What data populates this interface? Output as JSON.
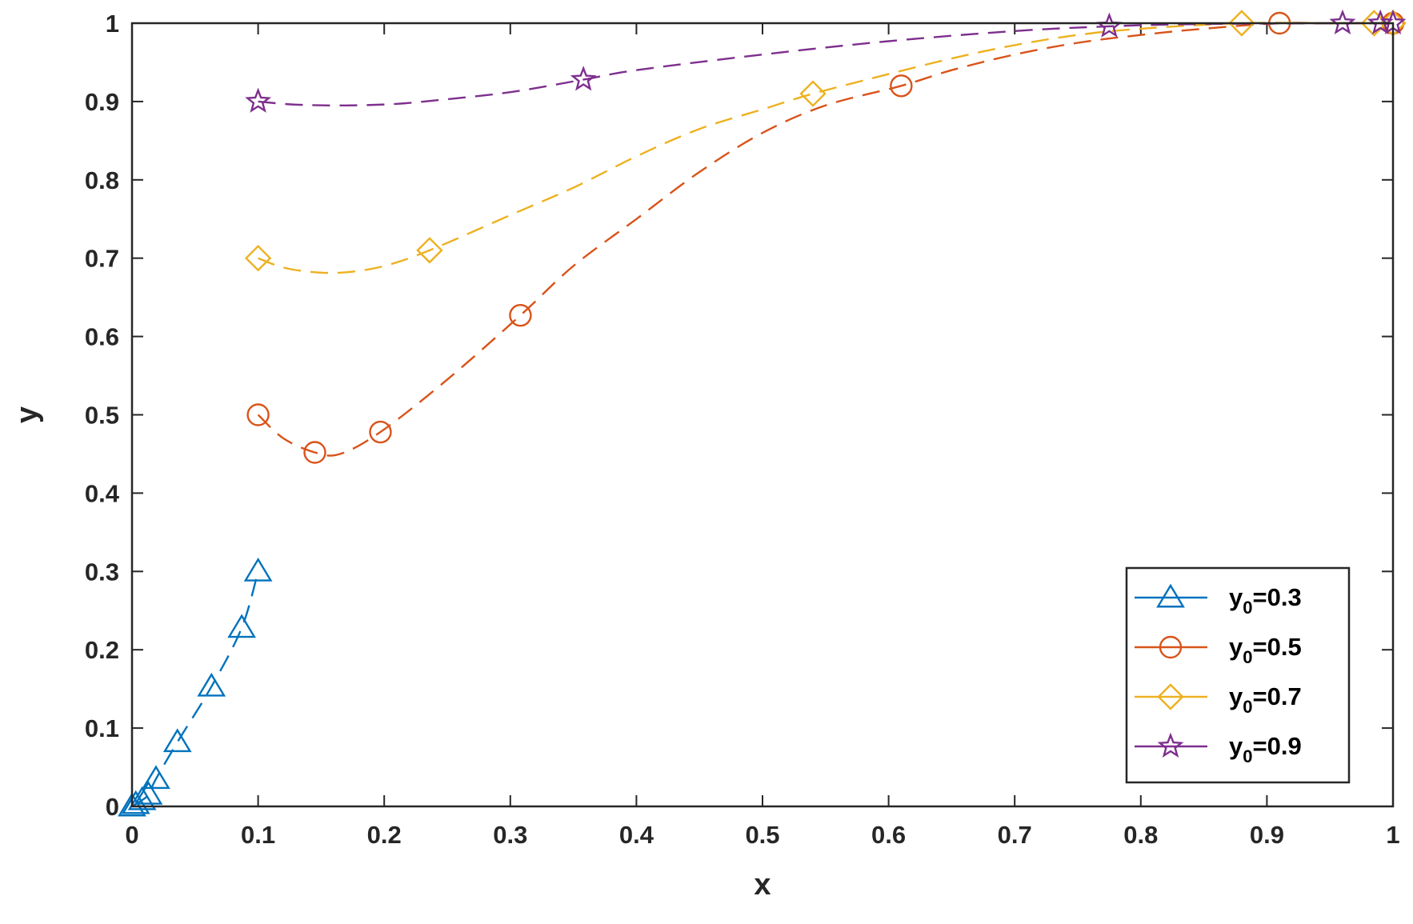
{
  "chart_data": {
    "type": "line",
    "title": "",
    "xlabel": "x",
    "ylabel": "y",
    "xlim": [
      0,
      1
    ],
    "ylim": [
      0,
      1
    ],
    "xticks": [
      0,
      0.1,
      0.2,
      0.3,
      0.4,
      0.5,
      0.6,
      0.7,
      0.8,
      0.9,
      1
    ],
    "xtick_labels": [
      "0",
      "0.1",
      "0.2",
      "0.3",
      "0.4",
      "0.5",
      "0.6",
      "0.7",
      "0.8",
      "0.9",
      "1"
    ],
    "yticks": [
      0,
      0.1,
      0.2,
      0.3,
      0.4,
      0.5,
      0.6,
      0.7,
      0.8,
      0.9,
      1
    ],
    "ytick_labels": [
      "0",
      "0.1",
      "0.2",
      "0.3",
      "0.4",
      "0.5",
      "0.6",
      "0.7",
      "0.8",
      "0.9",
      "1"
    ],
    "grid": false,
    "legend_position": "bottom-right",
    "series": [
      {
        "name": "y0=0.3",
        "legend_base": "y",
        "legend_sub": "0",
        "legend_rest": "=0.3",
        "color": "#0072BD",
        "marker": "triangle",
        "line_style": "dashed",
        "curve": [
          [
            0,
            0
          ],
          [
            0.003,
            0.003
          ],
          [
            0.008,
            0.008
          ],
          [
            0.013,
            0.015
          ],
          [
            0.019,
            0.035
          ],
          [
            0.036,
            0.082
          ],
          [
            0.063,
            0.153
          ],
          [
            0.087,
            0.228
          ],
          [
            0.1,
            0.3
          ]
        ],
        "markers": [
          [
            0,
            0
          ],
          [
            0.003,
            0.003
          ],
          [
            0.008,
            0.008
          ],
          [
            0.013,
            0.015
          ],
          [
            0.019,
            0.035
          ],
          [
            0.036,
            0.082
          ],
          [
            0.063,
            0.153
          ],
          [
            0.087,
            0.228
          ],
          [
            0.1,
            0.3
          ]
        ]
      },
      {
        "name": "y0=0.5",
        "legend_base": "y",
        "legend_sub": "0",
        "legend_rest": "=0.5",
        "color": "#D95319",
        "marker": "circle",
        "line_style": "dashed",
        "curve": [
          [
            0.1,
            0.5
          ],
          [
            0.12,
            0.47
          ],
          [
            0.145,
            0.452
          ],
          [
            0.165,
            0.45
          ],
          [
            0.197,
            0.478
          ],
          [
            0.25,
            0.545
          ],
          [
            0.308,
            0.627
          ],
          [
            0.35,
            0.69
          ],
          [
            0.4,
            0.75
          ],
          [
            0.45,
            0.81
          ],
          [
            0.5,
            0.86
          ],
          [
            0.55,
            0.895
          ],
          [
            0.61,
            0.92
          ],
          [
            0.65,
            0.94
          ],
          [
            0.7,
            0.96
          ],
          [
            0.75,
            0.975
          ],
          [
            0.8,
            0.985
          ],
          [
            0.85,
            0.993
          ],
          [
            0.91,
            1.0
          ],
          [
            0.95,
            1.0
          ],
          [
            1.0,
            1.0
          ]
        ],
        "markers": [
          [
            0.1,
            0.5
          ],
          [
            0.145,
            0.452
          ],
          [
            0.197,
            0.478
          ],
          [
            0.308,
            0.627
          ],
          [
            0.61,
            0.92
          ],
          [
            0.91,
            1.0
          ],
          [
            1.0,
            1.0
          ]
        ]
      },
      {
        "name": "y0=0.7",
        "legend_base": "y",
        "legend_sub": "0",
        "legend_rest": "=0.7",
        "color": "#EDB120",
        "marker": "diamond",
        "line_style": "dashed",
        "curve": [
          [
            0.1,
            0.7
          ],
          [
            0.12,
            0.688
          ],
          [
            0.145,
            0.682
          ],
          [
            0.17,
            0.682
          ],
          [
            0.2,
            0.69
          ],
          [
            0.236,
            0.71
          ],
          [
            0.3,
            0.755
          ],
          [
            0.35,
            0.79
          ],
          [
            0.4,
            0.83
          ],
          [
            0.45,
            0.865
          ],
          [
            0.5,
            0.89
          ],
          [
            0.54,
            0.91
          ],
          [
            0.6,
            0.935
          ],
          [
            0.65,
            0.955
          ],
          [
            0.7,
            0.972
          ],
          [
            0.75,
            0.985
          ],
          [
            0.8,
            0.993
          ],
          [
            0.88,
            1.0
          ],
          [
            0.95,
            1.0
          ],
          [
            0.985,
            1.0
          ],
          [
            1.0,
            1.0
          ]
        ],
        "markers": [
          [
            0.1,
            0.7
          ],
          [
            0.236,
            0.71
          ],
          [
            0.54,
            0.91
          ],
          [
            0.88,
            1.0
          ],
          [
            0.985,
            1.0
          ],
          [
            1.0,
            1.0
          ]
        ]
      },
      {
        "name": "y0=0.9",
        "legend_base": "y",
        "legend_sub": "0",
        "legend_rest": "=0.9",
        "color": "#7E2F8E",
        "marker": "star",
        "line_style": "dashed",
        "curve": [
          [
            0.1,
            0.9
          ],
          [
            0.13,
            0.896
          ],
          [
            0.17,
            0.895
          ],
          [
            0.21,
            0.897
          ],
          [
            0.25,
            0.903
          ],
          [
            0.3,
            0.912
          ],
          [
            0.358,
            0.928
          ],
          [
            0.4,
            0.94
          ],
          [
            0.5,
            0.96
          ],
          [
            0.6,
            0.977
          ],
          [
            0.7,
            0.99
          ],
          [
            0.775,
            0.996
          ],
          [
            0.85,
            0.999
          ],
          [
            0.96,
            1.0
          ],
          [
            0.99,
            1.0
          ],
          [
            1.0,
            1.0
          ]
        ],
        "markers": [
          [
            0.1,
            0.9
          ],
          [
            0.358,
            0.928
          ],
          [
            0.775,
            0.996
          ],
          [
            0.96,
            1.0
          ],
          [
            0.99,
            1.0
          ],
          [
            1.0,
            1.0
          ]
        ]
      }
    ]
  }
}
